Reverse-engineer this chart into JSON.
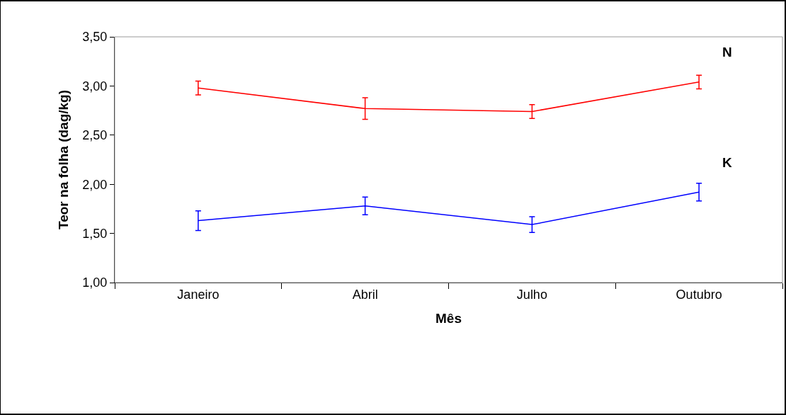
{
  "chart_data": {
    "type": "line",
    "xlabel": "Mês",
    "ylabel": "Teor na folha (dag/kg)",
    "categories": [
      "Janeiro",
      "Abril",
      "Julho",
      "Outubro"
    ],
    "series": [
      {
        "name": "N",
        "color": "#ff0000",
        "values": [
          2.98,
          2.77,
          2.74,
          3.04
        ],
        "errors": [
          0.07,
          0.11,
          0.07,
          0.07
        ]
      },
      {
        "name": "K",
        "color": "#0000ff",
        "values": [
          1.63,
          1.78,
          1.59,
          1.92
        ],
        "errors": [
          0.1,
          0.09,
          0.08,
          0.09
        ]
      }
    ],
    "ylim": [
      1.0,
      3.5
    ],
    "yticks": [
      {
        "value": 1.0,
        "label": "1,00"
      },
      {
        "value": 1.5,
        "label": "1,50"
      },
      {
        "value": 2.0,
        "label": "2,00"
      },
      {
        "value": 2.5,
        "label": "2,50"
      },
      {
        "value": 3.0,
        "label": "3,00"
      },
      {
        "value": 3.5,
        "label": "3,50"
      }
    ],
    "legend": false,
    "marker": "none",
    "line_style": "solid"
  }
}
